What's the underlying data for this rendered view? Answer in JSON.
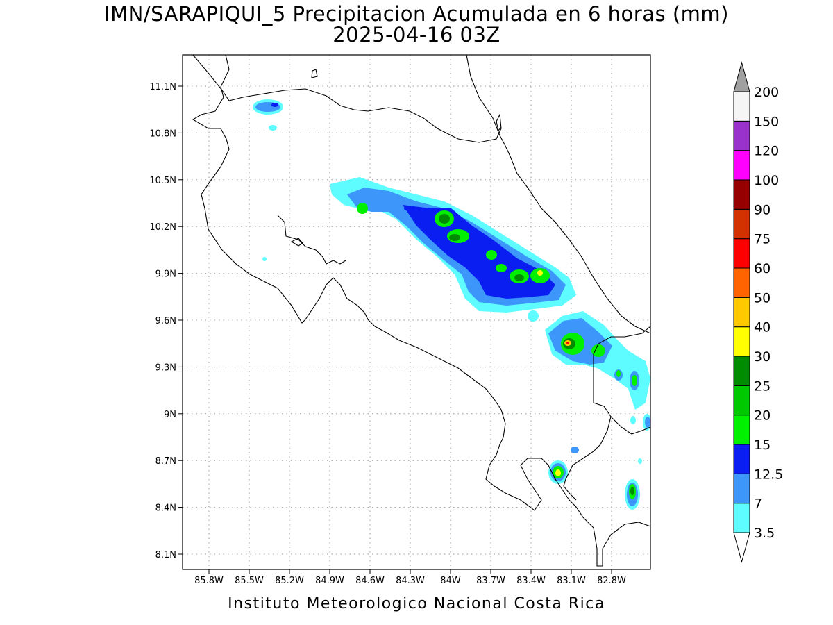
{
  "title": {
    "line1": "IMN/SARAPIQUI_5 Precipitacion Acumulada en 6 horas (mm)",
    "line2": "2025-04-16 03Z"
  },
  "footer": "Instituto Meteorologico Nacional Costa Rica",
  "map": {
    "lon_range": [
      -86.0,
      -82.3
    ],
    "lat_range": [
      8.0,
      11.3
    ],
    "lon_ticks": [
      {
        "value": -85.8,
        "label": "85.8W"
      },
      {
        "value": -85.5,
        "label": "85.5W"
      },
      {
        "value": -85.2,
        "label": "85.2W"
      },
      {
        "value": -84.9,
        "label": "84.9W"
      },
      {
        "value": -84.6,
        "label": "84.6W"
      },
      {
        "value": -84.3,
        "label": "84.3W"
      },
      {
        "value": -84.0,
        "label": "84W"
      },
      {
        "value": -83.7,
        "label": "83.7W"
      },
      {
        "value": -83.4,
        "label": "83.4W"
      },
      {
        "value": -83.1,
        "label": "83.1W"
      },
      {
        "value": -82.8,
        "label": "82.8W"
      }
    ],
    "lat_ticks": [
      {
        "value": 11.1,
        "label": "11.1N"
      },
      {
        "value": 10.8,
        "label": "10.8N"
      },
      {
        "value": 10.5,
        "label": "10.5N"
      },
      {
        "value": 10.2,
        "label": "10.2N"
      },
      {
        "value": 9.9,
        "label": "9.9N"
      },
      {
        "value": 9.6,
        "label": "9.6N"
      },
      {
        "value": 9.3,
        "label": "9.3N"
      },
      {
        "value": 9.0,
        "label": "9N"
      },
      {
        "value": 8.7,
        "label": "8.7N"
      },
      {
        "value": 8.4,
        "label": "8.4N"
      },
      {
        "value": 8.1,
        "label": "8.1N"
      }
    ],
    "grid": true
  },
  "colorbar": {
    "levels": [
      {
        "label": "3.5",
        "color": "#5ffcff"
      },
      {
        "label": "7",
        "color": "#3d96fa"
      },
      {
        "label": "12.5",
        "color": "#0a1ef2"
      },
      {
        "label": "15",
        "color": "#00f000"
      },
      {
        "label": "20",
        "color": "#00c800"
      },
      {
        "label": "25",
        "color": "#008c00"
      },
      {
        "label": "30",
        "color": "#ffff00"
      },
      {
        "label": "40",
        "color": "#ffc800"
      },
      {
        "label": "50",
        "color": "#ff6400"
      },
      {
        "label": "60",
        "color": "#ff0000"
      },
      {
        "label": "75",
        "color": "#d23200"
      },
      {
        "label": "90",
        "color": "#960000"
      },
      {
        "label": "100",
        "color": "#ff00ff"
      },
      {
        "label": "120",
        "color": "#9932cc"
      },
      {
        "label": "150",
        "color": "#f5f5f5"
      },
      {
        "label": "200",
        "color": "#a0a0a0"
      }
    ],
    "low_arrow_color": "#ffffff",
    "high_arrow_color": "#a0a0a0"
  }
}
